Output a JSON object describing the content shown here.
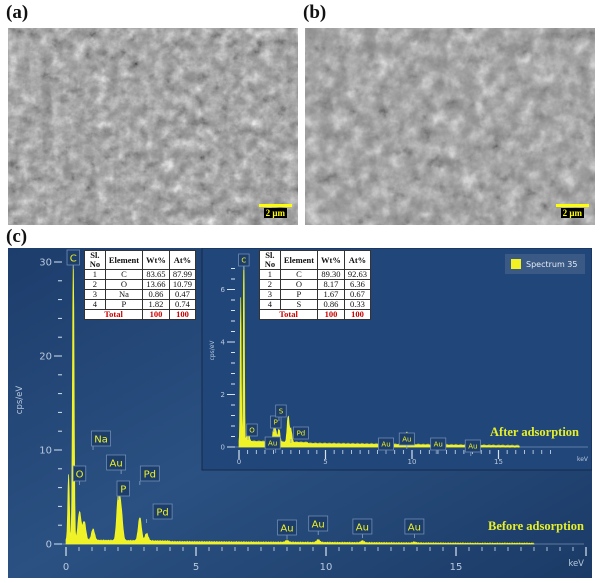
{
  "panels": {
    "a": "(a)",
    "b": "(b)",
    "c": "(c)"
  },
  "scale_bar": "2 μm",
  "legend": {
    "label": "Spectrum 35",
    "color": "#f2f222"
  },
  "annotations": {
    "before": "Before adsorption",
    "after": "After adsorption"
  },
  "tables": {
    "headers": [
      "Sl. No",
      "Element",
      "Wt%",
      "At%"
    ],
    "before": {
      "rows": [
        [
          "1",
          "C",
          "83.65",
          "87.99"
        ],
        [
          "2",
          "O",
          "13.66",
          "10.79"
        ],
        [
          "3",
          "Na",
          "0.86",
          "0.47"
        ],
        [
          "4",
          "P",
          "1.82",
          "0.74"
        ]
      ],
      "total": [
        "Total",
        "100",
        "100"
      ]
    },
    "after": {
      "rows": [
        [
          "1",
          "C",
          "89.30",
          "92.63"
        ],
        [
          "2",
          "O",
          "8.17",
          "6.36"
        ],
        [
          "3",
          "P",
          "1.67",
          "0.67"
        ],
        [
          "4",
          "S",
          "0.86",
          "0.33"
        ]
      ],
      "total": [
        "Total",
        "100",
        "100"
      ]
    }
  },
  "chart_data": [
    {
      "type": "line",
      "name": "Before adsorption",
      "xlabel": "keV",
      "ylabel": "cps/eV",
      "xlim": [
        0,
        20
      ],
      "ylim": [
        0,
        31
      ],
      "xticks": [
        0,
        5,
        10,
        15
      ],
      "yticks": [
        0,
        10,
        20,
        30
      ],
      "baseline": 0.3,
      "peaks": [
        {
          "x": 0.1,
          "y": 7
        },
        {
          "x": 0.28,
          "y": 31,
          "label": "C"
        },
        {
          "x": 0.52,
          "y": 3,
          "label": "O"
        },
        {
          "x": 0.7,
          "y": 2
        },
        {
          "x": 1.04,
          "y": 1.2,
          "label": "Na"
        },
        {
          "x": 2.01,
          "y": 4.5,
          "label": "P"
        },
        {
          "x": 2.12,
          "y": 3,
          "label": "Au"
        },
        {
          "x": 2.84,
          "y": 2.5,
          "label": "Pd"
        },
        {
          "x": 3.1,
          "y": 0.8,
          "label": "Pd"
        },
        {
          "x": 8.5,
          "y": 0.2,
          "label": "Au"
        },
        {
          "x": 9.7,
          "y": 0.3,
          "label": "Au"
        },
        {
          "x": 11.4,
          "y": 0.2,
          "label": "Au"
        },
        {
          "x": 13.4,
          "y": 0.1,
          "label": "Au"
        }
      ]
    },
    {
      "type": "line",
      "name": "After adsorption",
      "xlabel": "keV",
      "ylabel": "cps/eV",
      "xlim": [
        0,
        18
      ],
      "ylim": [
        0,
        7.2
      ],
      "xticks": [
        0,
        5,
        10,
        15
      ],
      "yticks": [
        0,
        2,
        4,
        6
      ],
      "baseline": 0.15,
      "peaks": [
        {
          "x": 0.1,
          "y": 5.5
        },
        {
          "x": 0.28,
          "y": 7.5,
          "label": "C"
        },
        {
          "x": 0.52,
          "y": 0.6,
          "label": "O"
        },
        {
          "x": 2.01,
          "y": 0.5,
          "label": "P"
        },
        {
          "x": 2.12,
          "y": 0.4,
          "label": "Au"
        },
        {
          "x": 2.31,
          "y": 0.5,
          "label": "S"
        },
        {
          "x": 2.84,
          "y": 1.0
        },
        {
          "x": 3.0,
          "y": 0.5,
          "label": "Pd"
        },
        {
          "x": 8.5,
          "y": 0.1,
          "label": "Au"
        },
        {
          "x": 9.7,
          "y": 0.5,
          "label": "Au"
        },
        {
          "x": 11.4,
          "y": 0.2,
          "label": "Au"
        },
        {
          "x": 13.4,
          "y": 0.05,
          "label": "Au"
        }
      ]
    }
  ]
}
